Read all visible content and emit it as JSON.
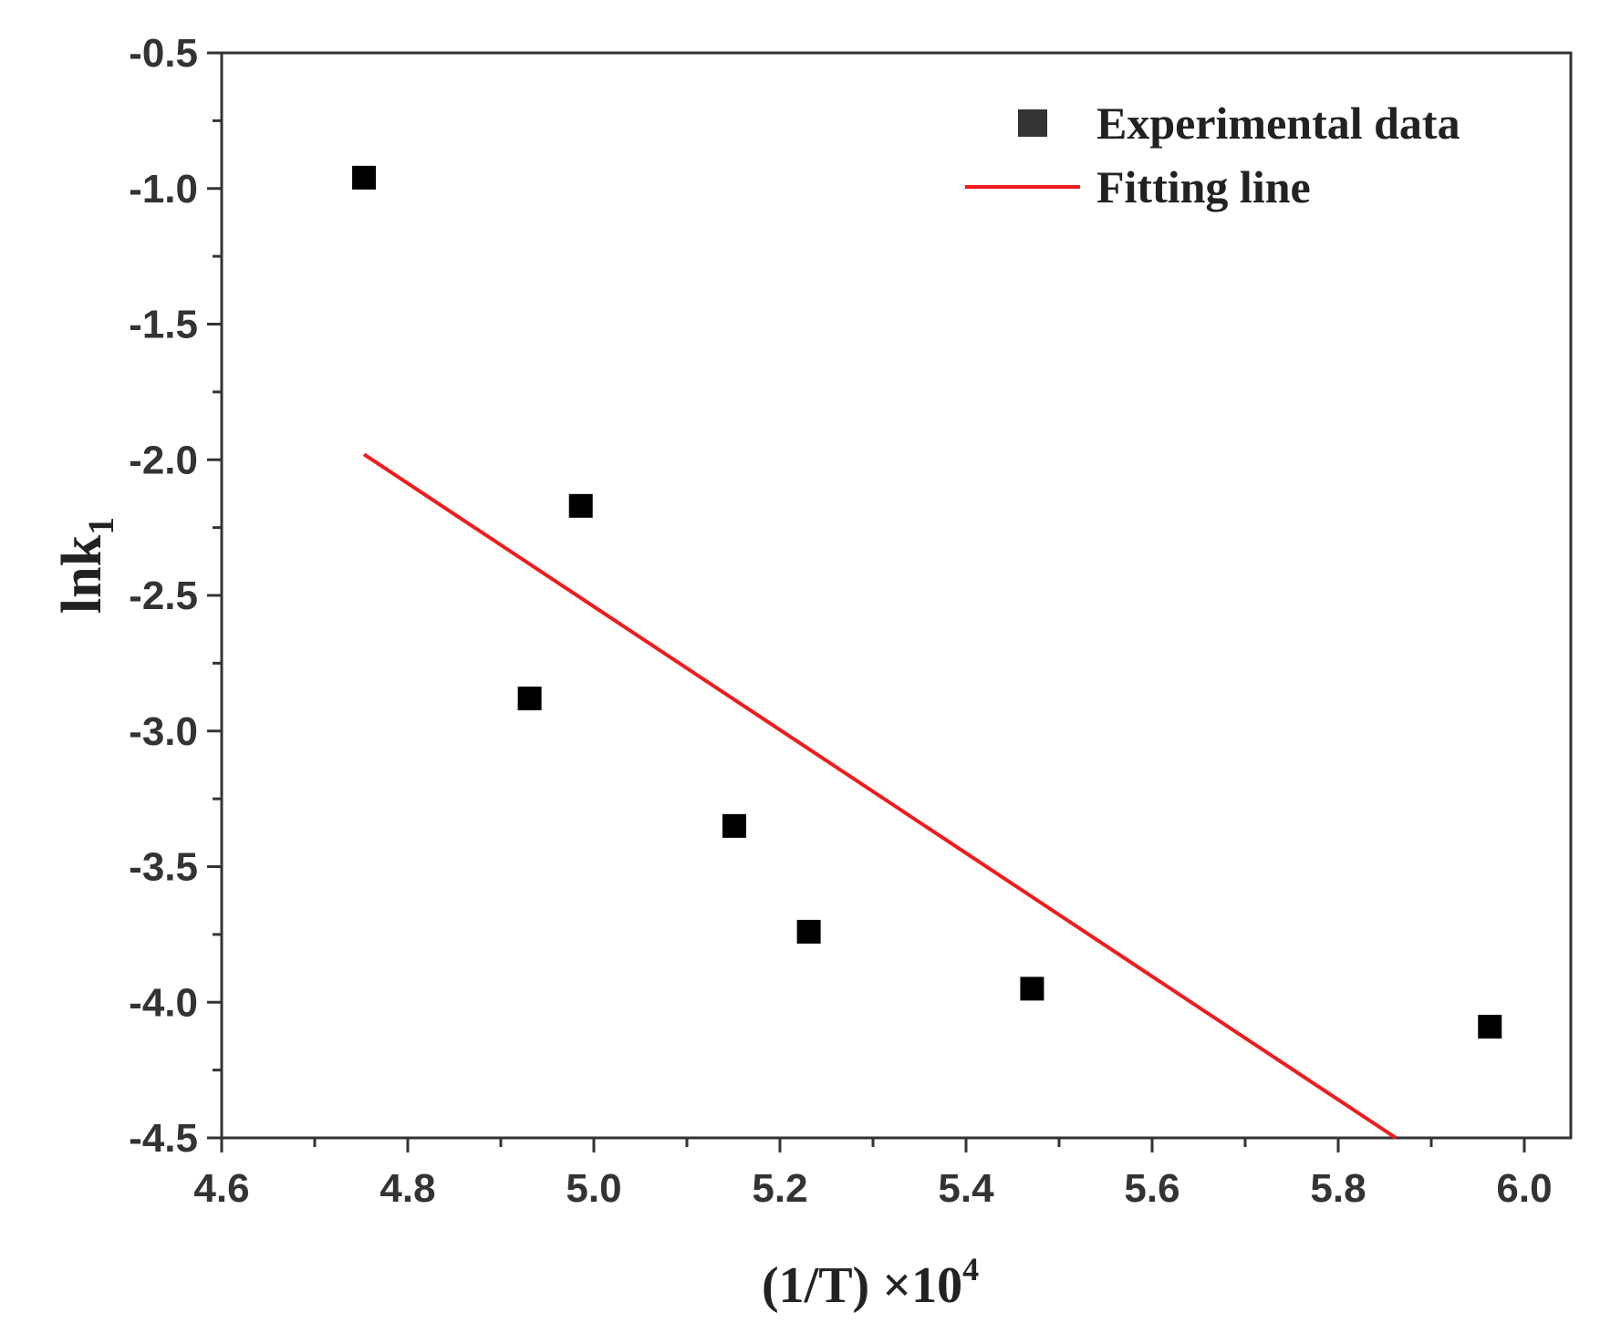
{
  "chart_data": {
    "type": "scatter",
    "title": "",
    "xlabel": "(1/T) ×10",
    "xlabel_superscript": "4",
    "ylabel": "lnk",
    "ylabel_subscript": "1",
    "xlim": [
      4.6,
      6.05
    ],
    "ylim": [
      -4.5,
      -0.5
    ],
    "x_ticks": [
      4.6,
      4.8,
      5.0,
      5.2,
      5.4,
      5.6,
      5.8,
      6.0
    ],
    "x_tick_labels": [
      "4.6",
      "4.8",
      "5.0",
      "5.2",
      "5.4",
      "5.6",
      "5.8",
      "6.0"
    ],
    "y_ticks": [
      -0.5,
      -1.0,
      -1.5,
      -2.0,
      -2.5,
      -3.0,
      -3.5,
      -4.0,
      -4.5
    ],
    "y_tick_labels": [
      "-0.5",
      "-1.0",
      "-1.5",
      "-2.0",
      "-2.5",
      "-3.0",
      "-3.5",
      "-4.0",
      "-4.5"
    ],
    "grid": false,
    "legend_position": "top-right",
    "series": [
      {
        "name": "Experimental data",
        "kind": "scatter",
        "marker": "square",
        "color": "#000000",
        "x": [
          4.753,
          4.931,
          4.986,
          5.151,
          5.231,
          5.471,
          5.963
        ],
        "y": [
          -0.96,
          -2.88,
          -2.17,
          -3.35,
          -3.74,
          -3.95,
          -4.09
        ]
      },
      {
        "name": "Fitting line",
        "kind": "line",
        "color": "#ee1c1c",
        "x": [
          4.753,
          5.862
        ],
        "y": [
          -1.98,
          -4.5
        ]
      }
    ]
  }
}
